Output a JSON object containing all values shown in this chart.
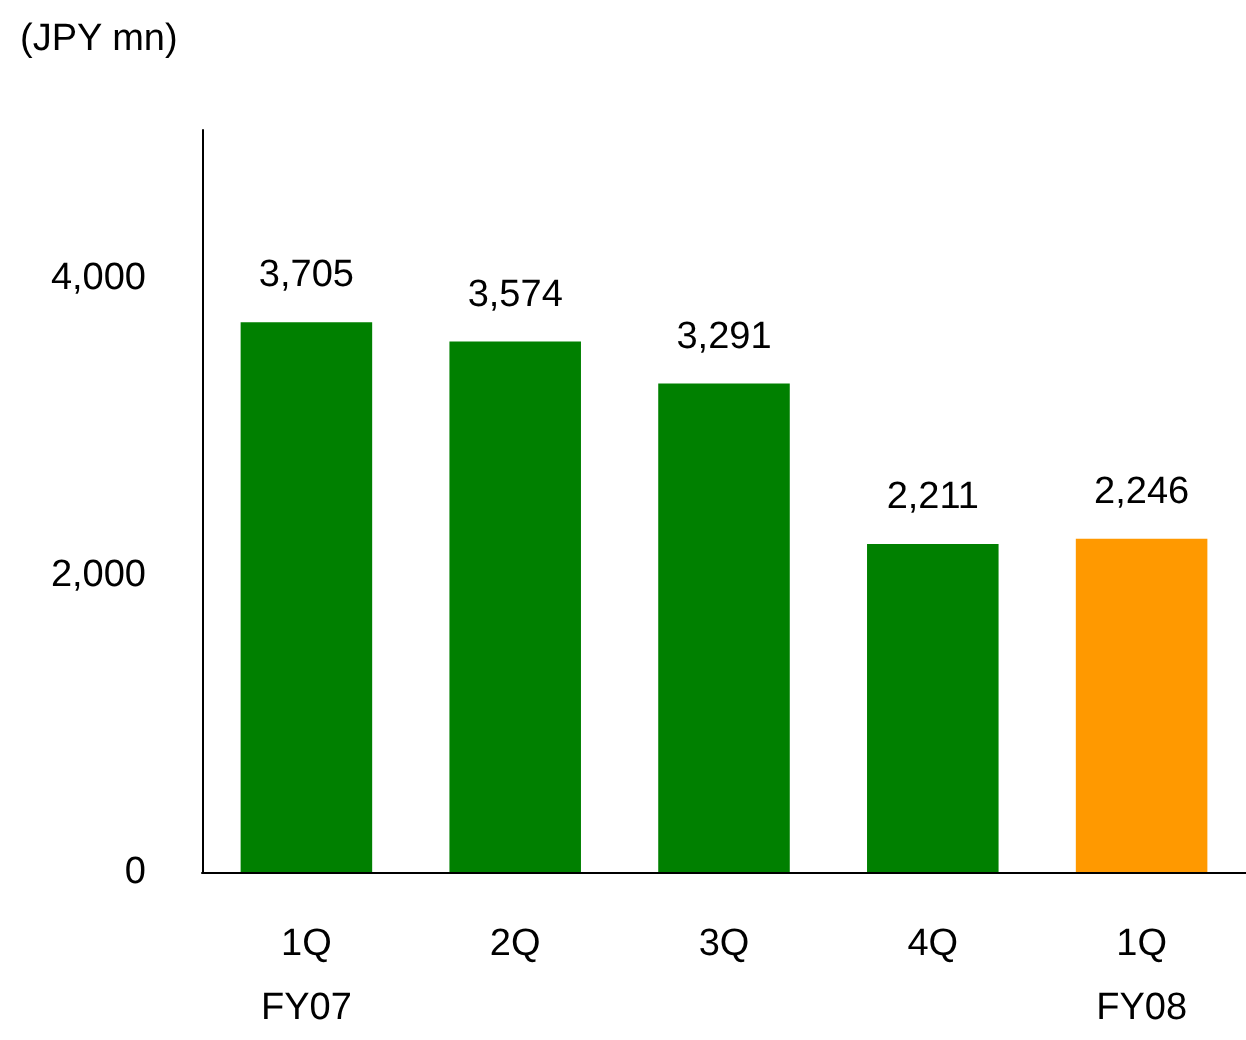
{
  "chart_data": {
    "type": "bar",
    "ylabel": "(JPY mn)",
    "categories": [
      "1Q\nFY07",
      "2Q",
      "3Q",
      "4Q",
      "1Q\nFY08"
    ],
    "values": [
      3705,
      3574,
      3291,
      2211,
      2246
    ],
    "colors": [
      "#008000",
      "#008000",
      "#008000",
      "#008000",
      "#ff9900"
    ],
    "value_labels": [
      "3,705",
      "3,574",
      "3,291",
      "2,211",
      "2,246"
    ],
    "ylim": [
      0,
      5000
    ],
    "yticks": [
      {
        "value": 0,
        "label": "0"
      },
      {
        "value": 2000,
        "label": "2,000"
      },
      {
        "value": 4000,
        "label": "4,000"
      }
    ],
    "grid": false
  }
}
